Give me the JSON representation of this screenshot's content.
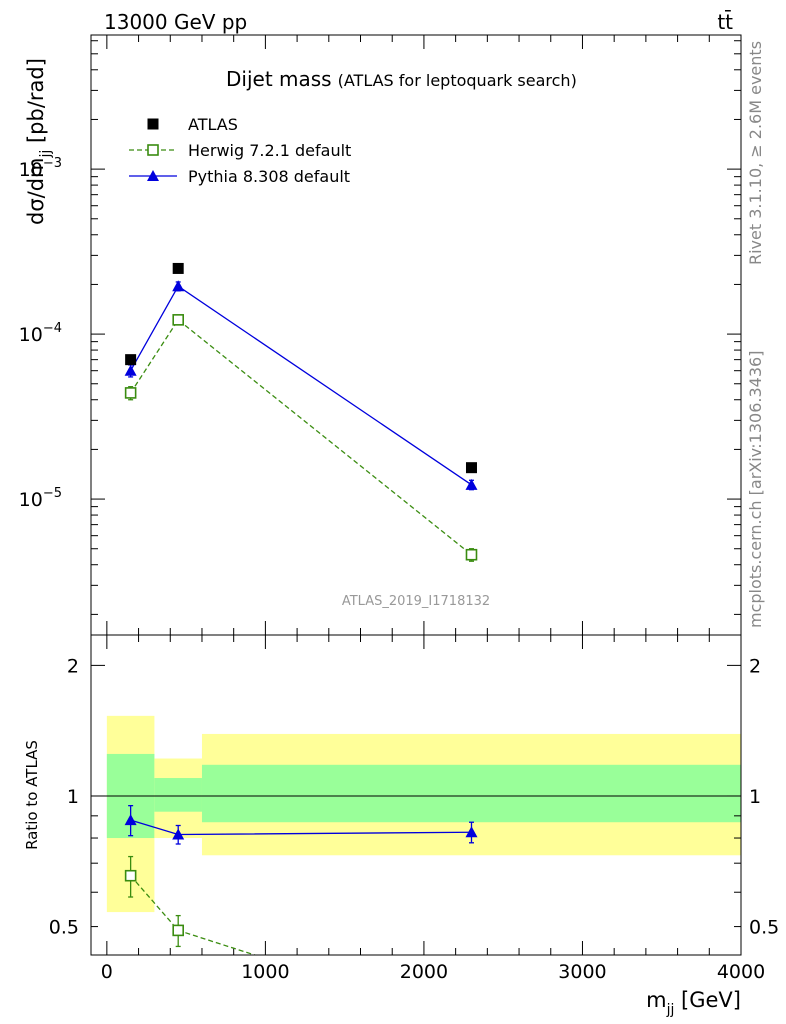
{
  "header": {
    "left_text": "13000 GeV pp",
    "right_text": "tt̄"
  },
  "side_labels": {
    "rivet": "Rivet 3.1.10, ≥ 2.6M events",
    "mcplots": "mcplots.cern.ch [arXiv:1306.3436]"
  },
  "chart_data": [
    {
      "type": "scatter",
      "panel": "main",
      "title": "Dijet mass",
      "subtitle": "(ATLAS for leptoquark search)",
      "ylabel": "dσ/dm_jj [pb/rad]",
      "ylabel_main": "dσ/dm",
      "ylabel_sub": "jj",
      "ylabel_tail": " [pb/rad]",
      "yscale": "log",
      "ylim": [
        1.5e-06,
        0.0065
      ],
      "xlim": [
        -100,
        4000
      ],
      "ytick_labels": [
        {
          "value": 0.001,
          "base": "10",
          "exp": "−3"
        },
        {
          "value": 0.0001,
          "base": "10",
          "exp": "−4"
        },
        {
          "value": 1e-05,
          "base": "10",
          "exp": "−5"
        }
      ],
      "watermark": "ATLAS_2019_I1718132",
      "legend_position": "top-left",
      "series": [
        {
          "name": "ATLAS",
          "color": "#000000",
          "marker": "square-filled",
          "x": [
            150,
            450,
            2300
          ],
          "y": [
            7e-05,
            0.00025,
            1.55e-05
          ]
        },
        {
          "name": "Herwig 7.2.1 default",
          "color": "#3a8c10",
          "marker": "square-open",
          "linestyle": "dashed",
          "x": [
            150,
            450,
            2300
          ],
          "y": [
            4.4e-05,
            0.000122,
            4.6e-06
          ],
          "yerr": [
            4e-06,
            8e-06,
            4e-07
          ]
        },
        {
          "name": "Pythia 8.308 default",
          "color": "#0000dd",
          "marker": "triangle-filled",
          "linestyle": "solid",
          "x": [
            150,
            450,
            2300
          ],
          "y": [
            6e-05,
            0.000195,
            1.22e-05
          ],
          "yerr": [
            5e-06,
            1.2e-05,
            8e-07
          ]
        }
      ]
    },
    {
      "type": "scatter",
      "panel": "ratio",
      "ylabel": "Ratio to ATLAS",
      "xlabel_main": "m",
      "xlabel_sub": "jj",
      "xlabel_tail": " [GeV]",
      "yscale": "log",
      "ylim": [
        0.43,
        2.35
      ],
      "xlim": [
        -100,
        4000
      ],
      "ytick_labels": [
        {
          "value": 2,
          "label": "2"
        },
        {
          "value": 1,
          "label": "1"
        },
        {
          "value": 0.5,
          "label": "0.5"
        }
      ],
      "xtick_labels": [
        {
          "value": 0,
          "label": "0"
        },
        {
          "value": 1000,
          "label": "1000"
        },
        {
          "value": 2000,
          "label": "2000"
        },
        {
          "value": 3000,
          "label": "3000"
        },
        {
          "value": 4000,
          "label": "4000"
        }
      ],
      "bands": [
        {
          "x0": 0,
          "x1": 300,
          "yellow": [
            0.54,
            1.53
          ],
          "green": [
            0.8,
            1.25
          ]
        },
        {
          "x0": 300,
          "x1": 600,
          "yellow": [
            0.8,
            1.22
          ],
          "green": [
            0.92,
            1.1
          ]
        },
        {
          "x0": 600,
          "x1": 4000,
          "yellow": [
            0.73,
            1.39
          ],
          "green": [
            0.87,
            1.18
          ]
        }
      ],
      "band_colors": {
        "yellow": "#ffff99",
        "green": "#99ff99"
      },
      "series": [
        {
          "name": "Herwig 7.2.1 default",
          "color": "#3a8c10",
          "marker": "square-open",
          "linestyle": "dashed",
          "x": [
            150,
            450,
            1200
          ],
          "y": [
            0.655,
            0.49,
            0.4
          ],
          "yerr": [
            0.07,
            0.04,
            0
          ],
          "marker_shown": [
            true,
            true,
            false
          ]
        },
        {
          "name": "Pythia 8.308 default",
          "color": "#0000dd",
          "marker": "triangle-filled",
          "linestyle": "solid",
          "x": [
            150,
            450,
            2300
          ],
          "y": [
            0.88,
            0.815,
            0.825
          ],
          "yerr": [
            0.07,
            0.04,
            0.045
          ],
          "marker_shown": [
            true,
            true,
            true
          ]
        }
      ]
    }
  ]
}
